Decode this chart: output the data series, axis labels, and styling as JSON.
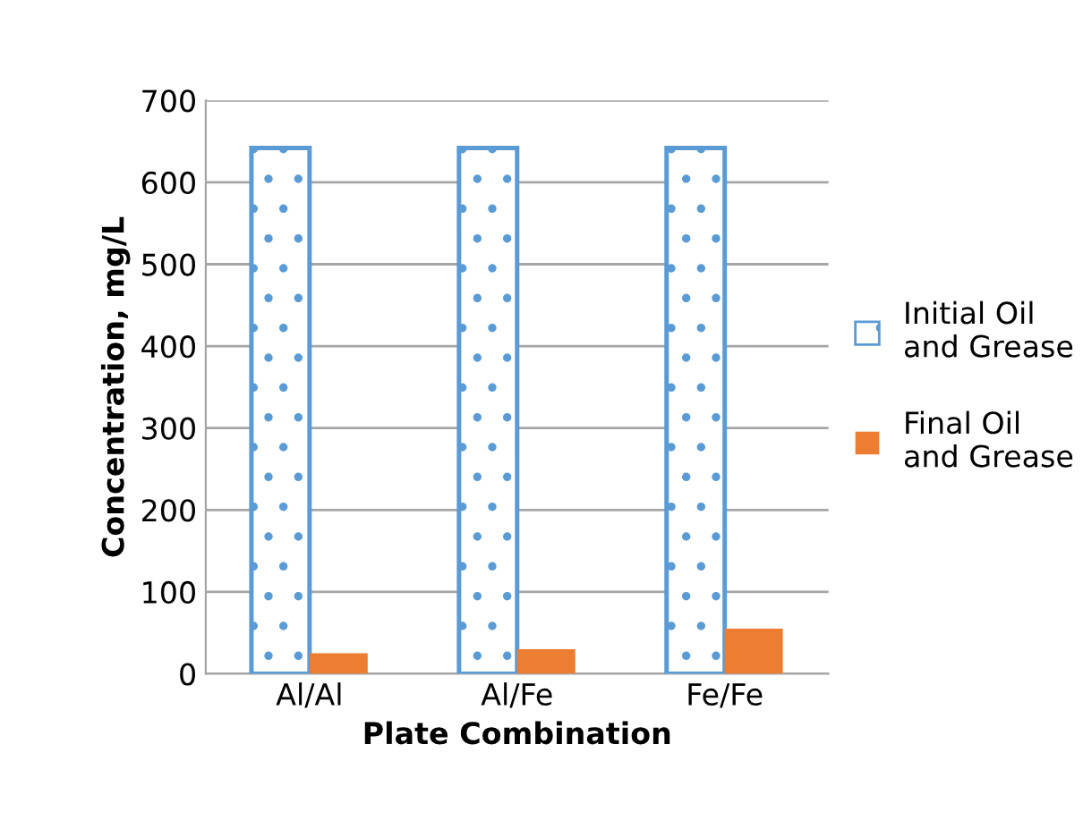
{
  "chart_data": {
    "type": "bar",
    "xlabel": "Plate Combination",
    "ylabel": "Concentration, mg/L",
    "categories": [
      "Al/Al",
      "Al/Fe",
      "Fe/Fe"
    ],
    "series": [
      {
        "name": "Initial Oil and Grease",
        "color": "#5b9bd5",
        "values": [
          642,
          642,
          642
        ]
      },
      {
        "name": "Final Oil and Grease",
        "color": "#ed7d31",
        "values": [
          25,
          30,
          55
        ]
      }
    ],
    "ylim": [
      0,
      700
    ],
    "yticks": [
      0,
      100,
      200,
      300,
      400,
      500,
      600,
      700
    ],
    "grid": "y",
    "legend": "right"
  }
}
